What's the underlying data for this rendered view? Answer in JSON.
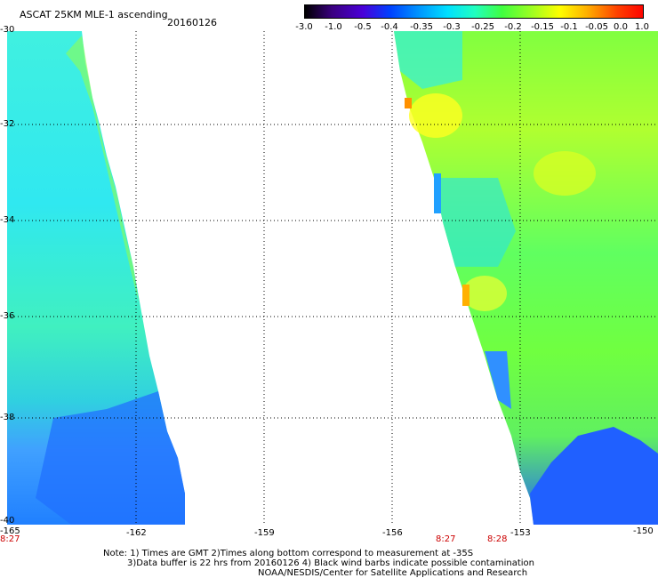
{
  "header": {
    "title": "ASCAT 25KM MLE-1 ascending",
    "date": "20160126"
  },
  "colorbar": {
    "labels": [
      "-3.0",
      "-1.0",
      "-0.5",
      "-0.4",
      "-0.35",
      "-0.3",
      "-0.25",
      "-0.2",
      "-0.15",
      "-0.1",
      "-0.05",
      "0.0",
      "1.0"
    ],
    "colors": [
      "#000000",
      "#3a0080",
      "#4a00d8",
      "#0040ff",
      "#0090ff",
      "#00e0ff",
      "#20ffc0",
      "#40ff40",
      "#a0ff20",
      "#ffff00",
      "#ffb000",
      "#ff4000",
      "#ff0000"
    ]
  },
  "axes": {
    "lon_labels": [
      "-165",
      "-162",
      "-159",
      "-156",
      "-153",
      "-150"
    ],
    "lat_labels": [
      "-30",
      "-32",
      "-34",
      "-36",
      "-38",
      "-40"
    ]
  },
  "time_labels": [
    "8:27",
    "8:27",
    "8:28"
  ],
  "notes": {
    "line1": "Note: 1) Times are GMT 2)Times along bottom correspond to measurement at -35S",
    "line2": "3)Data buffer is 22 hrs from 20160126 4) Black wind barbs indicate possible contamination",
    "line3": "NOAA/NESDIS/Center for Satellite Applications and Research"
  }
}
